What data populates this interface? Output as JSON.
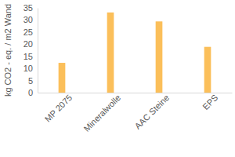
{
  "chart_data": {
    "type": "bar",
    "y_label": "kg CO2 - eq. / m2 Wand",
    "categories": [
      "MP 2075",
      "Mineralwolle",
      "AAC Steine",
      "EPS"
    ],
    "values": [
      12.3,
      33.1,
      29.4,
      18.9
    ],
    "color": "#fbbf5a",
    "ylim": [
      0,
      35
    ],
    "yticks": [
      0,
      5,
      10,
      15,
      20,
      25,
      30,
      35
    ],
    "grid": false
  }
}
